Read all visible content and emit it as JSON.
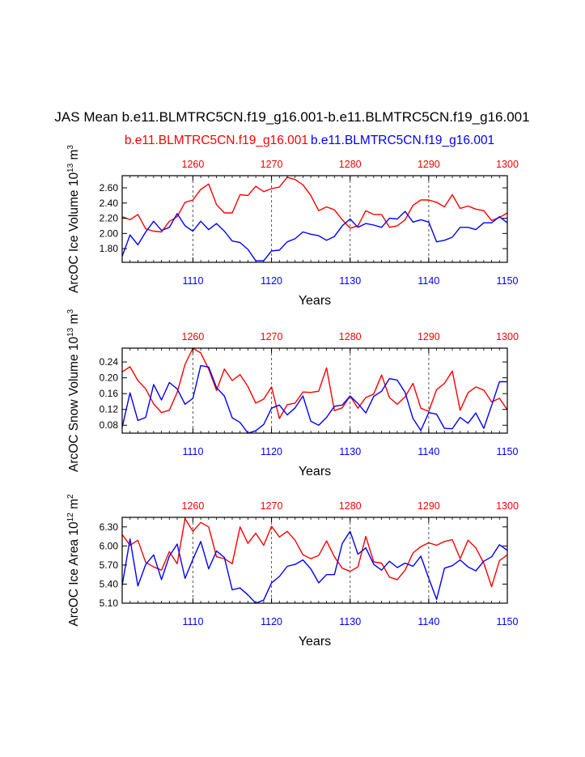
{
  "title": "JAS Mean b.e11.BLMTRC5CN.f19_g16.001-b.e11.BLMTRC5CN.f19_g16.001",
  "legend": {
    "red_case": "b.e11.BLMTRC5CN.f19_g16.001",
    "blue_case": "b.e11.BLMTRC5CN.f19_g16.001"
  },
  "colors": {
    "red": "#ff0000",
    "blue": "#0000ff",
    "axis": "#000000",
    "gridline": "#555555"
  },
  "chart_data": [
    {
      "type": "line",
      "ylabel": "ArcOC Ice Volume 10^13 m^3",
      "ylabel_parts": {
        "main": "ArcOC Ice Volume 10",
        "exp1": "13",
        "unit": " m",
        "exp2": "3"
      },
      "xlabel": "Years",
      "bottom_axis": {
        "range": [
          1101,
          1150
        ],
        "ticks": [
          "1110",
          "1120",
          "1130",
          "1140",
          "1150"
        ]
      },
      "top_axis": {
        "range": [
          1251,
          1300
        ],
        "ticks": [
          "1260",
          "1270",
          "1280",
          "1290",
          "1300"
        ]
      },
      "ylim": [
        1.62,
        2.76
      ],
      "yticks": [
        "1.80",
        "2.00",
        "2.20",
        "2.40",
        "2.60"
      ],
      "series": [
        {
          "name": "b.e11.BLMTRC5CN.f19_g16.001",
          "color": "red",
          "axis": "top",
          "values": [
            2.22,
            2.18,
            2.25,
            2.06,
            2.03,
            2.02,
            2.16,
            2.22,
            2.41,
            2.44,
            2.58,
            2.65,
            2.38,
            2.27,
            2.27,
            2.51,
            2.5,
            2.62,
            2.55,
            2.59,
            2.61,
            2.74,
            2.71,
            2.64,
            2.5,
            2.3,
            2.35,
            2.31,
            2.18,
            2.07,
            2.1,
            2.3,
            2.25,
            2.25,
            2.08,
            2.1,
            2.18,
            2.37,
            2.44,
            2.44,
            2.41,
            2.35,
            2.51,
            2.33,
            2.36,
            2.32,
            2.3,
            2.17,
            2.21,
            2.27
          ]
        },
        {
          "name": "b.e11.BLMTRC5CN.f19_g16.001",
          "color": "blue",
          "axis": "bottom",
          "values": [
            1.7,
            1.98,
            1.85,
            2.02,
            2.16,
            2.04,
            2.08,
            2.26,
            2.1,
            2.03,
            2.16,
            2.05,
            2.13,
            2.03,
            1.9,
            1.88,
            1.79,
            1.64,
            1.64,
            1.77,
            1.78,
            1.89,
            1.93,
            2.02,
            1.99,
            1.97,
            1.91,
            1.96,
            2.1,
            2.19,
            2.08,
            2.13,
            2.11,
            2.08,
            2.2,
            2.19,
            2.29,
            2.15,
            2.18,
            2.15,
            1.89,
            1.91,
            1.95,
            2.08,
            2.08,
            2.05,
            2.14,
            2.14,
            2.22,
            2.14
          ]
        }
      ]
    },
    {
      "type": "line",
      "ylabel": "ArcOC Snow Volume 10^13 m^3",
      "ylabel_parts": {
        "main": "ArcOC Snow Volume 10",
        "exp1": "13",
        "unit": " m",
        "exp2": "3"
      },
      "xlabel": "Years",
      "bottom_axis": {
        "range": [
          1101,
          1150
        ],
        "ticks": [
          "1110",
          "1120",
          "1130",
          "1140",
          "1150"
        ]
      },
      "top_axis": {
        "range": [
          1251,
          1300
        ],
        "ticks": [
          "1260",
          "1270",
          "1280",
          "1290",
          "1300"
        ]
      },
      "ylim": [
        0.06,
        0.275
      ],
      "yticks": [
        "0.08",
        "0.12",
        "0.16",
        "0.20",
        "0.24"
      ],
      "series": [
        {
          "name": "b.e11.BLMTRC5CN.f19_g16.001",
          "color": "red",
          "axis": "top",
          "values": [
            0.215,
            0.228,
            0.193,
            0.172,
            0.134,
            0.112,
            0.118,
            0.163,
            0.234,
            0.275,
            0.263,
            0.222,
            0.168,
            0.222,
            0.193,
            0.208,
            0.178,
            0.136,
            0.146,
            0.177,
            0.097,
            0.132,
            0.136,
            0.164,
            0.163,
            0.166,
            0.225,
            0.117,
            0.124,
            0.154,
            0.123,
            0.15,
            0.159,
            0.207,
            0.15,
            0.133,
            0.152,
            0.186,
            0.123,
            0.115,
            0.17,
            0.186,
            0.217,
            0.118,
            0.162,
            0.177,
            0.169,
            0.139,
            0.148,
            0.119
          ]
        },
        {
          "name": "b.e11.BLMTRC5CN.f19_g16.001",
          "color": "blue",
          "axis": "bottom",
          "values": [
            0.075,
            0.162,
            0.092,
            0.1,
            0.183,
            0.144,
            0.188,
            0.172,
            0.133,
            0.148,
            0.231,
            0.227,
            0.175,
            0.154,
            0.099,
            0.087,
            0.06,
            0.066,
            0.082,
            0.123,
            0.131,
            0.106,
            0.124,
            0.154,
            0.09,
            0.08,
            0.1,
            0.128,
            0.131,
            0.154,
            0.135,
            0.111,
            0.153,
            0.166,
            0.198,
            0.194,
            0.163,
            0.097,
            0.067,
            0.112,
            0.108,
            0.072,
            0.071,
            0.1,
            0.085,
            0.111,
            0.072,
            0.13,
            0.19,
            0.19
          ]
        }
      ]
    },
    {
      "type": "line",
      "ylabel": "ArcOC Ice Area 10^12 m^2",
      "ylabel_parts": {
        "main": "ArcOC Ice Area 10",
        "exp1": "12",
        "unit": " m",
        "exp2": "2"
      },
      "xlabel": "Years",
      "bottom_axis": {
        "range": [
          1101,
          1150
        ],
        "ticks": [
          "1110",
          "1120",
          "1130",
          "1140",
          "1150"
        ]
      },
      "top_axis": {
        "range": [
          1251,
          1300
        ],
        "ticks": [
          "1260",
          "1270",
          "1280",
          "1290",
          "1300"
        ]
      },
      "ylim": [
        5.1,
        6.45
      ],
      "yticks": [
        "5.10",
        "5.40",
        "5.70",
        "6.00",
        "6.30"
      ],
      "series": [
        {
          "name": "b.e11.BLMTRC5CN.f19_g16.001",
          "color": "red",
          "axis": "top",
          "values": [
            6.18,
            6.01,
            6.09,
            5.74,
            5.67,
            5.62,
            5.91,
            5.72,
            6.43,
            6.23,
            6.37,
            6.3,
            5.83,
            5.8,
            5.72,
            6.3,
            6.04,
            6.2,
            6.01,
            6.31,
            6.14,
            6.23,
            6.09,
            5.86,
            5.8,
            5.85,
            6.08,
            5.83,
            5.65,
            5.6,
            5.67,
            6.15,
            5.75,
            5.73,
            5.51,
            5.47,
            5.62,
            5.89,
            5.99,
            6.05,
            6.01,
            6.07,
            6.1,
            5.8,
            6.09,
            5.97,
            5.73,
            5.36,
            5.77,
            5.86
          ]
        },
        {
          "name": "b.e11.BLMTRC5CN.f19_g16.001",
          "color": "blue",
          "axis": "bottom",
          "values": [
            5.38,
            6.11,
            5.37,
            5.71,
            5.86,
            5.47,
            5.84,
            6.03,
            5.49,
            5.79,
            6.07,
            5.64,
            5.92,
            5.82,
            5.31,
            5.34,
            5.23,
            5.1,
            5.15,
            5.42,
            5.52,
            5.68,
            5.71,
            5.78,
            5.64,
            5.42,
            5.55,
            5.55,
            6.04,
            6.23,
            5.87,
            5.97,
            5.71,
            5.62,
            5.76,
            5.66,
            5.73,
            5.68,
            5.84,
            5.49,
            5.16,
            5.65,
            5.69,
            5.78,
            5.67,
            5.61,
            5.76,
            5.83,
            6.02,
            5.93
          ]
        }
      ]
    }
  ]
}
